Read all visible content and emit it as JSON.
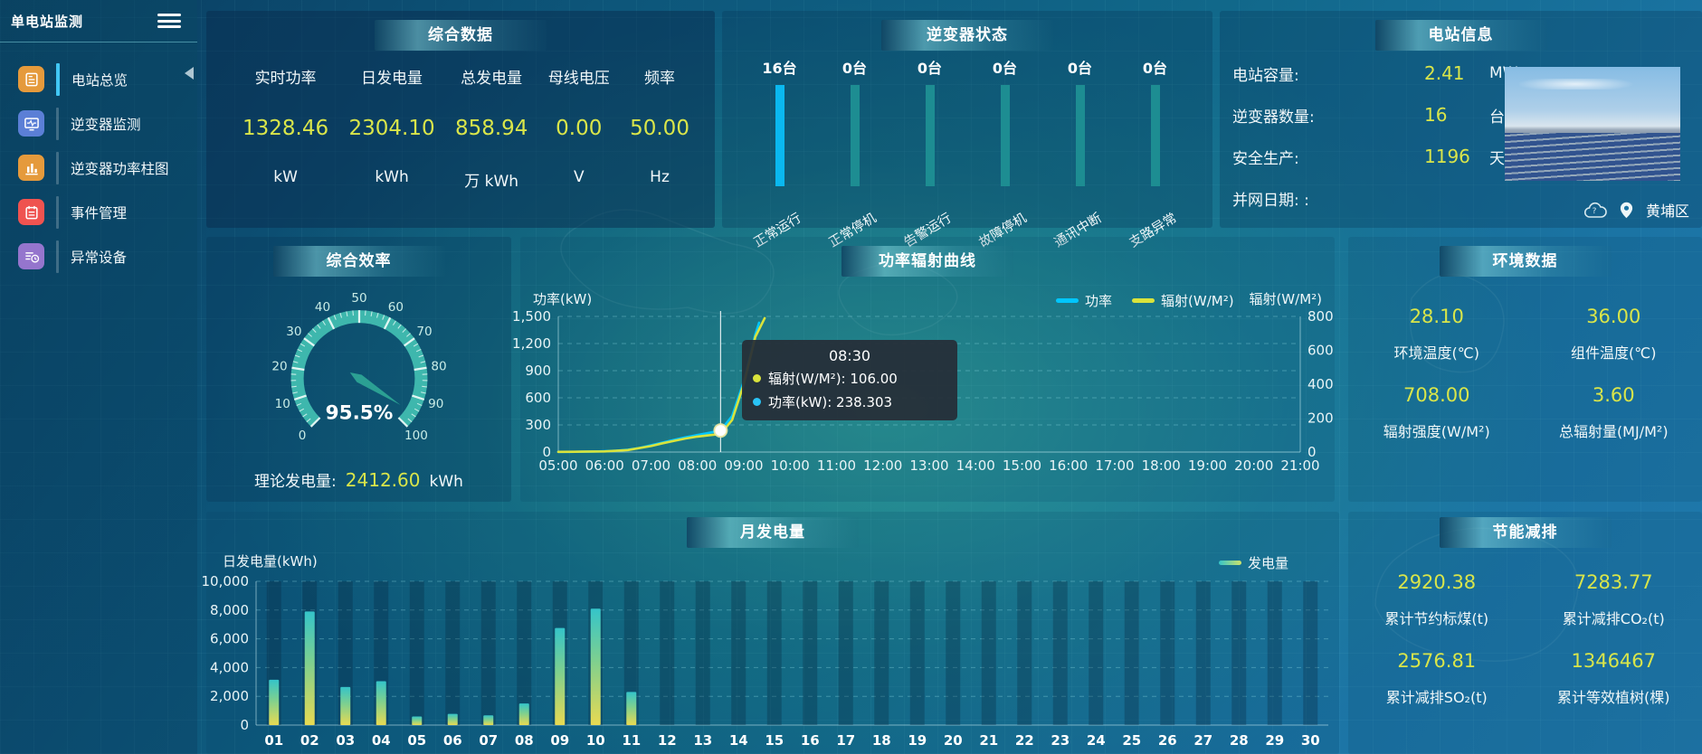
{
  "app": {
    "title": "单电站监测"
  },
  "colors": {
    "accent_cyan": "#41c7f5",
    "value_yellow": "#d9e54a",
    "power_line": "#00c6ff",
    "radiation_line": "#d9e33c",
    "inverter_active_bar": "#0ab8f0",
    "inverter_idle_bar": "#1d8d92",
    "gauge_band": "#41bdb0",
    "bar_gradient": [
      "#e8da52",
      "#7ed08f",
      "#35c4c9"
    ]
  },
  "sidebar": {
    "items": [
      {
        "label": "电站总览",
        "icon": "station-overview",
        "color": "#e59a3c",
        "active": true
      },
      {
        "label": "逆变器监测",
        "icon": "inverter-monitor",
        "color": "#5b7fd6",
        "active": false
      },
      {
        "label": "逆变器功率柱图",
        "icon": "inverter-bars",
        "color": "#e59a3c",
        "active": false
      },
      {
        "label": "事件管理",
        "icon": "event-management",
        "color": "#ef5350",
        "active": false
      },
      {
        "label": "异常设备",
        "icon": "abnormal-devices",
        "color": "#9575cd",
        "active": false
      }
    ]
  },
  "overview": {
    "title": "综合数据",
    "columns": [
      {
        "label": "实时功率",
        "value": "1328.46",
        "unit": "kW"
      },
      {
        "label": "日发电量",
        "value": "2304.10",
        "unit": "kWh"
      },
      {
        "label": "总发电量",
        "value": "858.94",
        "unit": "万 kWh"
      },
      {
        "label": "母线电压",
        "value": "0.00",
        "unit": "V"
      },
      {
        "label": "频率",
        "value": "50.00",
        "unit": "Hz"
      }
    ]
  },
  "inverter_status": {
    "title": "逆变器状态",
    "items": [
      {
        "count": "16台",
        "label": "正常运行",
        "bar_color": "#0ab8f0"
      },
      {
        "count": "0台",
        "label": "正常停机",
        "bar_color": "#1d8d92"
      },
      {
        "count": "0台",
        "label": "告警运行",
        "bar_color": "#1d8d92"
      },
      {
        "count": "0台",
        "label": "故障停机",
        "bar_color": "#1d8d92"
      },
      {
        "count": "0台",
        "label": "通讯中断",
        "bar_color": "#1d8d92"
      },
      {
        "count": "0台",
        "label": "支路异常",
        "bar_color": "#1d8d92"
      }
    ]
  },
  "station_info": {
    "title": "电站信息",
    "rows": [
      {
        "label": "电站容量:",
        "value": "2.41",
        "unit": "MW"
      },
      {
        "label": "逆变器数量:",
        "value": "16",
        "unit": "台"
      },
      {
        "label": "安全生产:",
        "value": "1196",
        "unit": "天"
      },
      {
        "label": "并网日期:  :",
        "value": "",
        "unit": ""
      }
    ],
    "location": "黄埔区"
  },
  "efficiency": {
    "title": "综合效率",
    "value": 95.5,
    "value_label": "95.5%",
    "min": 0,
    "max": 100,
    "tick_labels": [
      "0",
      "10",
      "20",
      "30",
      "40",
      "50",
      "60",
      "70",
      "80",
      "90",
      "100"
    ],
    "footer_label": "理论发电量:",
    "footer_value": "2412.60",
    "footer_unit": "kWh"
  },
  "environment": {
    "title": "环境数据",
    "stats": [
      {
        "value": "28.10",
        "label": "环境温度(℃)"
      },
      {
        "value": "36.00",
        "label": "组件温度(℃)"
      },
      {
        "value": "708.00",
        "label": "辐射强度(W/M²)"
      },
      {
        "value": "3.60",
        "label": "总辐射量(MJ/M²)"
      }
    ]
  },
  "savings": {
    "title": "节能减排",
    "stats": [
      {
        "value": "2920.38",
        "label": "累计节约标煤(t)"
      },
      {
        "value": "7283.77",
        "label": "累计减排CO₂(t)"
      },
      {
        "value": "2576.81",
        "label": "累计减排SO₂(t)"
      },
      {
        "value": "1346467",
        "label": "累计等效植树(棵)"
      }
    ]
  },
  "chart_data": [
    {
      "type": "line",
      "title": "功率辐射曲线",
      "ylabel_left": "功率(kW)",
      "ylabel_right": "辐射(W/M²)",
      "ylim_left": [
        0,
        1500
      ],
      "yticks_left": [
        "1,500",
        "1,200",
        "900",
        "600",
        "300",
        "0"
      ],
      "ylim_right": [
        0,
        800
      ],
      "yticks_right": [
        "800",
        "600",
        "400",
        "200",
        "0"
      ],
      "x_ticks": [
        "05:00",
        "06:00",
        "07:00",
        "08:00",
        "09:00",
        "10:00",
        "11:00",
        "12:00",
        "13:00",
        "14:00",
        "15:00",
        "16:00",
        "17:00",
        "18:00",
        "19:00",
        "20:00",
        "21:00"
      ],
      "legend": [
        {
          "label": "功率",
          "color": "#00c6ff"
        },
        {
          "label": "辐射(W/M²)",
          "color": "#d9e33c"
        }
      ],
      "series": [
        {
          "name": "功率",
          "axis": "left",
          "color": "#00c6ff",
          "points": [
            [
              5,
              2
            ],
            [
              5.25,
              2
            ],
            [
              5.5,
              3
            ],
            [
              5.75,
              5
            ],
            [
              6,
              9
            ],
            [
              6.25,
              15
            ],
            [
              6.5,
              26
            ],
            [
              6.75,
              45
            ],
            [
              7,
              75
            ],
            [
              7.25,
              105
            ],
            [
              7.5,
              135
            ],
            [
              7.75,
              163
            ],
            [
              8,
              188
            ],
            [
              8.25,
              212
            ],
            [
              8.5,
              238.3
            ],
            [
              8.75,
              400
            ],
            [
              9,
              780
            ],
            [
              9.25,
              1300
            ],
            [
              9.33,
              1430
            ]
          ]
        },
        {
          "name": "辐射(W/M²)",
          "axis": "right",
          "color": "#d9e33c",
          "points": [
            [
              5,
              1
            ],
            [
              5.5,
              2
            ],
            [
              6,
              4
            ],
            [
              6.5,
              12
            ],
            [
              7,
              35
            ],
            [
              7.25,
              52
            ],
            [
              7.5,
              66
            ],
            [
              7.75,
              80
            ],
            [
              8,
              91
            ],
            [
              8.25,
              99
            ],
            [
              8.5,
              106
            ],
            [
              8.75,
              190
            ],
            [
              9,
              400
            ],
            [
              9.25,
              680
            ],
            [
              9.45,
              790
            ]
          ]
        }
      ],
      "tooltip": {
        "time": "08:30",
        "x_hour": 8.5,
        "rows": [
          {
            "label": "辐射(W/M²)",
            "value": "106.00",
            "color": "#d9e33c"
          },
          {
            "label": "功率(kW)",
            "value": "238.303",
            "color": "#29c4f6"
          }
        ]
      }
    },
    {
      "type": "bar",
      "title": "月发电量",
      "ylabel": "日发电量(kWh)",
      "legend": "发电量",
      "ylim": [
        0,
        10000
      ],
      "ytick_labels": [
        "10,000",
        "8,000",
        "6,000",
        "4,000",
        "2,000",
        "0"
      ],
      "categories": [
        "01",
        "02",
        "03",
        "04",
        "05",
        "06",
        "07",
        "08",
        "09",
        "10",
        "11",
        "12",
        "13",
        "14",
        "15",
        "16",
        "17",
        "18",
        "19",
        "20",
        "21",
        "22",
        "23",
        "24",
        "25",
        "26",
        "27",
        "28",
        "29",
        "30"
      ],
      "values": [
        3150,
        7900,
        2650,
        3050,
        600,
        780,
        680,
        1500,
        6750,
        8100,
        2300,
        0,
        0,
        0,
        0,
        0,
        0,
        0,
        0,
        0,
        0,
        0,
        0,
        0,
        0,
        0,
        0,
        0,
        0,
        0
      ]
    }
  ]
}
